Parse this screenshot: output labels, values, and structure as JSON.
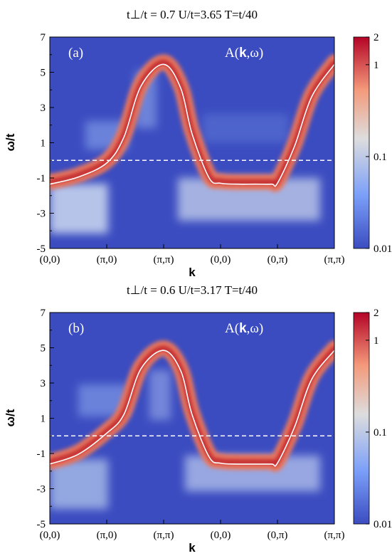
{
  "chart_data": [
    {
      "type": "heatmap",
      "title": "t⊥/t = 0.7  U/t=3.65  T=t/40",
      "panel_label": "(a)",
      "annotation": "A(k,ω)",
      "xlabel": "k",
      "ylabel": "ω/t",
      "x_ticks": [
        "(0,0)",
        "(π,0)",
        "(π,π)",
        "(0,0)",
        "(0,π)",
        "(π,π)"
      ],
      "y_ticks": [
        "7",
        "5",
        "3",
        "1",
        "-1",
        "-3",
        "-5"
      ],
      "ylim": [
        -5,
        7
      ],
      "colorbar": {
        "scale": "log",
        "ticks": [
          "2",
          "1",
          "0.1",
          "0.01"
        ],
        "range": [
          0.01,
          2
        ]
      },
      "dashed_line_y": 0,
      "white_curve": {
        "x": [
          0,
          0.5,
          1,
          1.3,
          1.6,
          2,
          2.3,
          2.5,
          2.8,
          3,
          3.3,
          3.6,
          3.9,
          4,
          4.3,
          4.6,
          5
        ],
        "y": [
          -1.35,
          -0.95,
          -0.15,
          1.3,
          4.2,
          5.45,
          4.1,
          1.5,
          -1.0,
          -1.3,
          -1.35,
          -1.35,
          -1.35,
          -1.3,
          0.8,
          3.6,
          5.45
        ]
      },
      "colors": {
        "background": "#3b4cc0",
        "peak": "#b40426"
      }
    },
    {
      "type": "heatmap",
      "title": "t⊥/t = 0.6  U/t=3.17  T=t/40",
      "panel_label": "(b)",
      "annotation": "A(k,ω)",
      "xlabel": "k",
      "ylabel": "ω/t",
      "x_ticks": [
        "(0,0)",
        "(π,0)",
        "(π,π)",
        "(0,0)",
        "(0,π)",
        "(π,π)"
      ],
      "y_ticks": [
        "7",
        "5",
        "3",
        "1",
        "-1",
        "-3",
        "-5"
      ],
      "ylim": [
        -5,
        7
      ],
      "colorbar": {
        "scale": "log",
        "ticks": [
          "2",
          "1",
          "0.1",
          "0.01"
        ],
        "range": [
          0.01,
          2
        ]
      },
      "dashed_line_y": 0,
      "white_curve": {
        "x": [
          0,
          0.5,
          1,
          1.3,
          1.6,
          2,
          2.3,
          2.5,
          2.8,
          3,
          3.3,
          3.6,
          3.9,
          4,
          4.3,
          4.6,
          5
        ],
        "y": [
          -1.6,
          -1.05,
          0.15,
          1.2,
          3.8,
          4.85,
          3.7,
          1.2,
          -1.2,
          -1.55,
          -1.6,
          -1.6,
          -1.6,
          -1.55,
          0.5,
          3.2,
          4.85
        ]
      },
      "colors": {
        "background": "#3b4cc0",
        "peak": "#b40426"
      }
    }
  ]
}
